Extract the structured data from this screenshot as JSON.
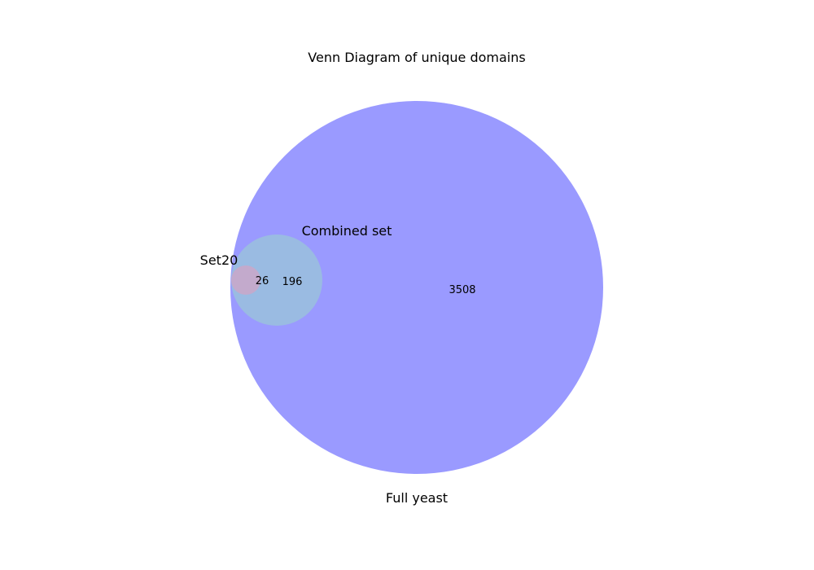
{
  "title": "Venn Diagram of unique domains",
  "sets": [
    {
      "id": "full-yeast",
      "label": "Full yeast",
      "color": "#9a9aff"
    },
    {
      "id": "combined-set",
      "label": "Combined set",
      "color": "#9abbe2"
    },
    {
      "id": "set20",
      "label": "Set20",
      "color": "#c3aacc"
    }
  ],
  "regions": {
    "full_yeast_only": "3508",
    "combined_set_only": "196",
    "set20": "26"
  }
}
